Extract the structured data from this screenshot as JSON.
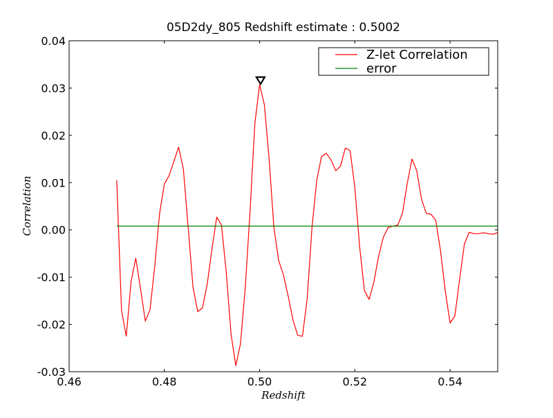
{
  "chart_data": {
    "type": "line",
    "title": "05D2dy_805 Redshift estimate : 0.5002",
    "xlabel": "Redshift",
    "ylabel": "Correlation",
    "xlim": [
      0.46,
      0.55
    ],
    "ylim": [
      -0.03,
      0.04
    ],
    "x_ticks": [
      0.46,
      0.48,
      0.5,
      0.52,
      0.54
    ],
    "x_tick_labels": [
      "0.46",
      "0.48",
      "0.50",
      "0.52",
      "0.54"
    ],
    "y_ticks": [
      0.04,
      0.03,
      0.02,
      0.01,
      0.0,
      -0.01,
      -0.02,
      -0.03
    ],
    "y_tick_labels": [
      "0.04",
      "0.03",
      "0.02",
      "0.01",
      "0.00",
      "-0.01",
      "-0.02",
      "-0.03"
    ],
    "grid": false,
    "legend_position": "top-right",
    "marker": {
      "shape": "down-triangle",
      "x": 0.5002,
      "y": 0.0307
    },
    "series": [
      {
        "name": "Z-let Correlation",
        "color": "#ff0000",
        "x": [
          0.47,
          0.471,
          0.472,
          0.473,
          0.474,
          0.475,
          0.476,
          0.477,
          0.478,
          0.479,
          0.48,
          0.481,
          0.482,
          0.483,
          0.484,
          0.485,
          0.486,
          0.487,
          0.488,
          0.489,
          0.49,
          0.491,
          0.492,
          0.493,
          0.494,
          0.495,
          0.496,
          0.497,
          0.498,
          0.499,
          0.5,
          0.501,
          0.502,
          0.503,
          0.504,
          0.505,
          0.506,
          0.507,
          0.508,
          0.509,
          0.51,
          0.511,
          0.512,
          0.513,
          0.514,
          0.515,
          0.516,
          0.517,
          0.518,
          0.519,
          0.52,
          0.521,
          0.522,
          0.523,
          0.524,
          0.525,
          0.526,
          0.527,
          0.528,
          0.529,
          0.53,
          0.531,
          0.532,
          0.533,
          0.534,
          0.535,
          0.536,
          0.537,
          0.538,
          0.539,
          0.54,
          0.541,
          0.542,
          0.543,
          0.544,
          0.545,
          0.546,
          0.547,
          0.548,
          0.549,
          0.55
        ],
        "values": [
          0.0105,
          -0.017,
          -0.0225,
          -0.011,
          -0.006,
          -0.0125,
          -0.0193,
          -0.0168,
          -0.0075,
          0.0035,
          0.0097,
          0.0115,
          0.0145,
          0.0175,
          0.0128,
          0.0005,
          -0.012,
          -0.0173,
          -0.0165,
          -0.0115,
          -0.004,
          0.0027,
          0.001,
          -0.009,
          -0.022,
          -0.0287,
          -0.024,
          -0.012,
          0.004,
          0.0225,
          0.0307,
          0.0265,
          0.015,
          0.0005,
          -0.0065,
          -0.0095,
          -0.014,
          -0.019,
          -0.0223,
          -0.0225,
          -0.0145,
          0.0005,
          0.0105,
          0.0155,
          0.0162,
          0.0148,
          0.0125,
          0.0135,
          0.0173,
          0.0168,
          0.009,
          -0.0035,
          -0.0128,
          -0.0147,
          -0.011,
          -0.0055,
          -0.0015,
          0.0005,
          0.0008,
          0.001,
          0.0035,
          0.0098,
          0.015,
          0.0125,
          0.0065,
          0.0035,
          0.0033,
          0.002,
          -0.0045,
          -0.013,
          -0.0197,
          -0.0182,
          -0.0105,
          -0.003,
          -0.0005,
          -0.0008,
          -0.0008,
          -0.0006,
          -0.0008,
          -0.0009,
          -0.0006
        ]
      },
      {
        "name": "error",
        "color": "#008000",
        "x": [
          0.47,
          0.55
        ],
        "values": [
          0.0008,
          0.0008
        ]
      }
    ]
  }
}
